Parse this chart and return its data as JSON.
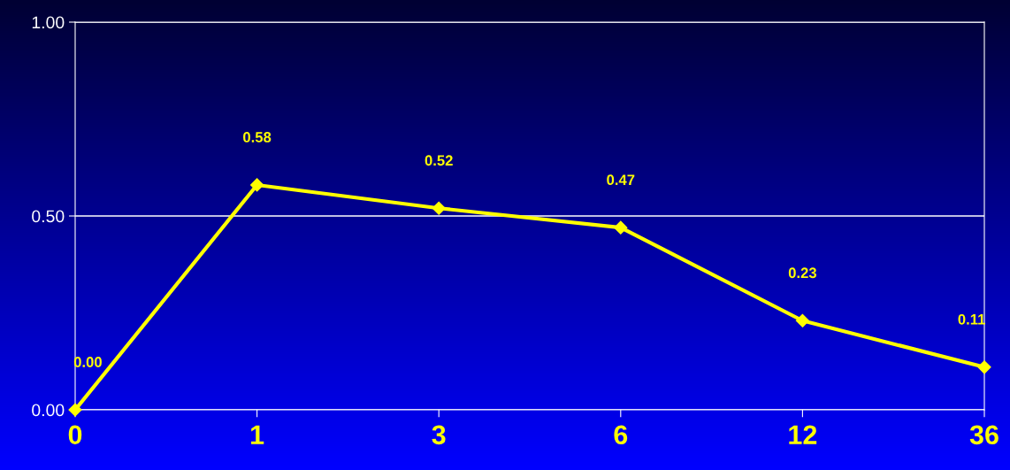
{
  "chart_data": {
    "type": "line",
    "categories": [
      "0",
      "1",
      "3",
      "6",
      "12",
      "36"
    ],
    "series": [
      {
        "color": "#ffff00",
        "values": [
          0.0,
          0.58,
          0.52,
          0.47,
          0.23,
          0.11
        ],
        "value_labels": [
          "0.00",
          "0.58",
          "0.52",
          "0.47",
          "0.23",
          "0.11"
        ]
      }
    ],
    "ylim": [
      0,
      1
    ],
    "yticks": [
      {
        "value": 0,
        "label": "0.00"
      },
      {
        "value": 0.5,
        "label": "0.50"
      },
      {
        "value": 1,
        "label": "1.00"
      }
    ],
    "grid": "y",
    "marker": "diamond",
    "line_style": "solid"
  }
}
